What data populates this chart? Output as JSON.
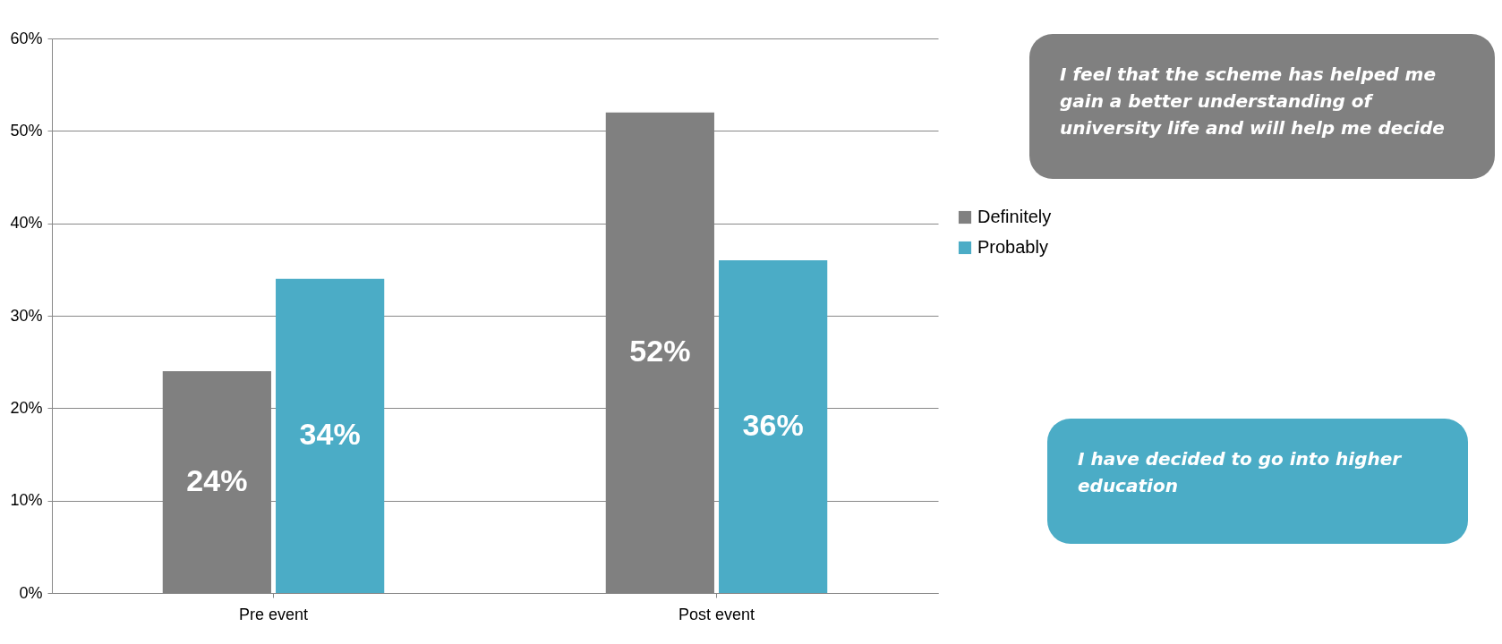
{
  "chart_data": {
    "type": "bar",
    "categories": [
      "Pre event",
      "Post event"
    ],
    "series": [
      {
        "name": "Definitely",
        "color": "#808080",
        "values": [
          24,
          52
        ],
        "value_labels": [
          "24%",
          "52%"
        ]
      },
      {
        "name": "Probably",
        "color": "#4bacc6",
        "values": [
          34,
          36
        ],
        "value_labels": [
          "34%",
          "36%"
        ]
      }
    ],
    "ylim": [
      0,
      60
    ],
    "yticks": [
      {
        "value": 0,
        "label": "0%"
      },
      {
        "value": 10,
        "label": "10%"
      },
      {
        "value": 20,
        "label": "20%"
      },
      {
        "value": 30,
        "label": "30%"
      },
      {
        "value": 40,
        "label": "40%"
      },
      {
        "value": 50,
        "label": "50%"
      },
      {
        "value": 60,
        "label": "60%"
      }
    ],
    "grid": "y",
    "legend": "right",
    "annotations": [
      "I feel that the scheme has helped me gain a better understanding of university life and will help me decide",
      "I have decided to go into higher education"
    ]
  }
}
